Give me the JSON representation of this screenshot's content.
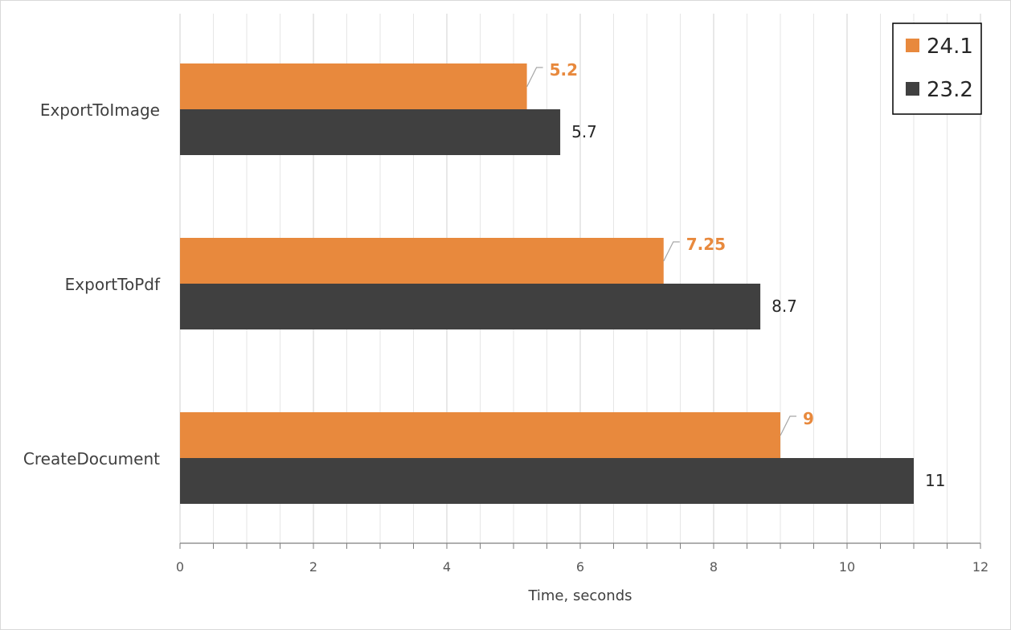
{
  "chart_data": {
    "type": "bar",
    "orientation": "horizontal",
    "categories": [
      "ExportToImage",
      "ExportToPdf",
      "CreateDocument"
    ],
    "series": [
      {
        "name": "24.1",
        "values": [
          5.2,
          7.25,
          9
        ],
        "labels": [
          "5.2",
          "7.25",
          "9"
        ],
        "color": "#E8893D",
        "label_color": "#E8893D",
        "label_bold": true
      },
      {
        "name": "23.2",
        "values": [
          5.7,
          8.7,
          11
        ],
        "labels": [
          "5.7",
          "8.7",
          "11"
        ],
        "color": "#404040",
        "label_color": "#262626",
        "label_bold": false
      }
    ],
    "xlabel": "Time, seconds",
    "ylabel": "",
    "xlim": [
      0,
      12
    ],
    "xticks": [
      0,
      2,
      4,
      6,
      8,
      10,
      12
    ],
    "xtick_labels": [
      "0",
      "2",
      "4",
      "6",
      "8",
      "10",
      "12"
    ],
    "minor_tick_step": 0.5,
    "grid": true,
    "legend_position": "top-right",
    "legend_order": [
      "24.1",
      "23.2"
    ]
  }
}
